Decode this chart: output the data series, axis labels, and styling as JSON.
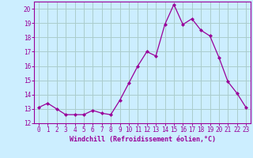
{
  "x": [
    0,
    1,
    2,
    3,
    4,
    5,
    6,
    7,
    8,
    9,
    10,
    11,
    12,
    13,
    14,
    15,
    16,
    17,
    18,
    19,
    20,
    21,
    22,
    23
  ],
  "y": [
    13.1,
    13.4,
    13.0,
    12.6,
    12.6,
    12.6,
    12.9,
    12.7,
    12.6,
    13.6,
    14.8,
    16.0,
    17.0,
    16.7,
    18.9,
    20.3,
    18.9,
    19.3,
    18.5,
    18.1,
    16.6,
    14.9,
    14.1,
    13.1
  ],
  "line_color": "#990099",
  "marker": "D",
  "marker_size": 2.0,
  "bg_color": "#cceeff",
  "grid_color": "#aacccc",
  "xlabel": "Windchill (Refroidissement éolien,°C)",
  "xlabel_color": "#990099",
  "tick_color": "#990099",
  "label_fontsize": 5.5,
  "xlabel_fontsize": 6.0,
  "ylim": [
    12,
    20.5
  ],
  "yticks": [
    12,
    13,
    14,
    15,
    16,
    17,
    18,
    19,
    20
  ],
  "xlim": [
    -0.5,
    23.5
  ],
  "xticks": [
    0,
    1,
    2,
    3,
    4,
    5,
    6,
    7,
    8,
    9,
    10,
    11,
    12,
    13,
    14,
    15,
    16,
    17,
    18,
    19,
    20,
    21,
    22,
    23
  ]
}
